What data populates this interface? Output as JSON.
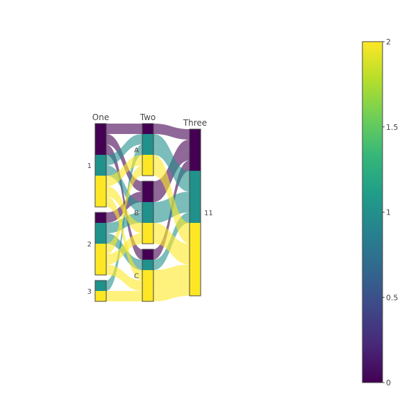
{
  "chart_data": {
    "type": "parcats",
    "dimensions": [
      {
        "label": "One",
        "categories": [
          "1",
          "2",
          "3"
        ]
      },
      {
        "label": "Two",
        "categories": [
          "A",
          "B",
          "C"
        ]
      },
      {
        "label": "Three",
        "categories": [
          "11"
        ]
      }
    ],
    "color_levels": [
      0,
      1,
      2
    ],
    "colors": {
      "0": "#440154",
      "1": "#21918c",
      "2": "#fde725"
    },
    "colorscale": "Viridis",
    "colorbar": {
      "range": [
        0,
        2
      ],
      "ticks": [
        "0",
        "0.5",
        "1",
        "1.5",
        "2"
      ]
    },
    "records": [
      {
        "one": "1",
        "two": "A",
        "color": 0,
        "count": 1
      },
      {
        "one": "1",
        "two": "B",
        "color": 0,
        "count": 1
      },
      {
        "one": "1",
        "two": "C",
        "color": 0,
        "count": 1
      },
      {
        "one": "1",
        "two": "A",
        "color": 1,
        "count": 1
      },
      {
        "one": "1",
        "two": "B",
        "color": 1,
        "count": 1
      },
      {
        "one": "1",
        "two": "A",
        "color": 2,
        "count": 1
      },
      {
        "one": "1",
        "two": "B",
        "color": 2,
        "count": 1
      },
      {
        "one": "1",
        "two": "C",
        "color": 2,
        "count": 1
      },
      {
        "one": "2",
        "two": "B",
        "color": 0,
        "count": 1
      },
      {
        "one": "2",
        "two": "C",
        "color": 1,
        "count": 1
      },
      {
        "one": "2",
        "two": "B",
        "color": 1,
        "count": 1
      },
      {
        "one": "2",
        "two": "B",
        "color": 2,
        "count": 1
      },
      {
        "one": "2",
        "two": "C",
        "color": 2,
        "count": 1
      },
      {
        "one": "2",
        "two": "A",
        "color": 2,
        "count": 1
      },
      {
        "one": "3",
        "two": "A",
        "color": 1,
        "count": 1
      },
      {
        "one": "3",
        "two": "C",
        "color": 2,
        "count": 1
      }
    ]
  }
}
